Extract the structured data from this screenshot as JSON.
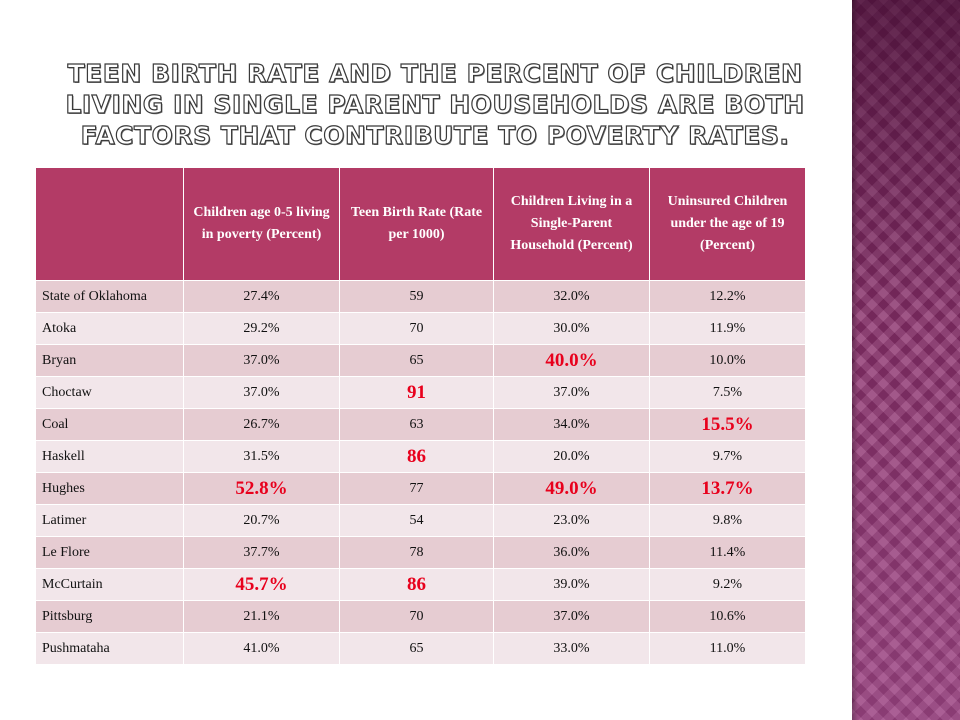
{
  "slide": {
    "title": "Teen birth rate and the percent of children living in single parent households are both factors that contribute to poverty rates."
  },
  "colors": {
    "header_bg": "#b33b66",
    "row_odd_bg": "#e6ccd2",
    "row_even_bg": "#f2e6ea",
    "highlight_text": "#e8001c",
    "side_panel": "#8a2f6b"
  },
  "table": {
    "headers": [
      "",
      "Children age 0-5 living in poverty (Percent)",
      "Teen Birth Rate (Rate per 1000)",
      "Children Living in a Single-Parent Household (Percent)",
      "Uninsured Children under the age of 19 (Percent)"
    ],
    "rows": [
      {
        "county": "State of Oklahoma",
        "poverty": "27.4%",
        "birth_rate": "59",
        "single_parent": "32.0%",
        "uninsured": "12.2%"
      },
      {
        "county": "Atoka",
        "poverty": "29.2%",
        "birth_rate": "70",
        "single_parent": "30.0%",
        "uninsured": "11.9%"
      },
      {
        "county": "Bryan",
        "poverty": "37.0%",
        "birth_rate": "65",
        "single_parent": "40.0%",
        "uninsured": "10.0%"
      },
      {
        "county": "Choctaw",
        "poverty": "37.0%",
        "birth_rate": "91",
        "single_parent": "37.0%",
        "uninsured": "7.5%"
      },
      {
        "county": "Coal",
        "poverty": "26.7%",
        "birth_rate": "63",
        "single_parent": "34.0%",
        "uninsured": "15.5%"
      },
      {
        "county": "Haskell",
        "poverty": "31.5%",
        "birth_rate": "86",
        "single_parent": "20.0%",
        "uninsured": "9.7%"
      },
      {
        "county": "Hughes",
        "poverty": "52.8%",
        "birth_rate": "77",
        "single_parent": "49.0%",
        "uninsured": "13.7%"
      },
      {
        "county": "Latimer",
        "poverty": "20.7%",
        "birth_rate": "54",
        "single_parent": "23.0%",
        "uninsured": "9.8%"
      },
      {
        "county": "Le Flore",
        "poverty": "37.7%",
        "birth_rate": "78",
        "single_parent": "36.0%",
        "uninsured": "11.4%"
      },
      {
        "county": "McCurtain",
        "poverty": "45.7%",
        "birth_rate": "86",
        "single_parent": "39.0%",
        "uninsured": "9.2%"
      },
      {
        "county": "Pittsburg",
        "poverty": "21.1%",
        "birth_rate": "70",
        "single_parent": "37.0%",
        "uninsured": "10.6%"
      },
      {
        "county": "Pushmataha",
        "poverty": "41.0%",
        "birth_rate": "65",
        "single_parent": "33.0%",
        "uninsured": "11.0%"
      }
    ]
  }
}
